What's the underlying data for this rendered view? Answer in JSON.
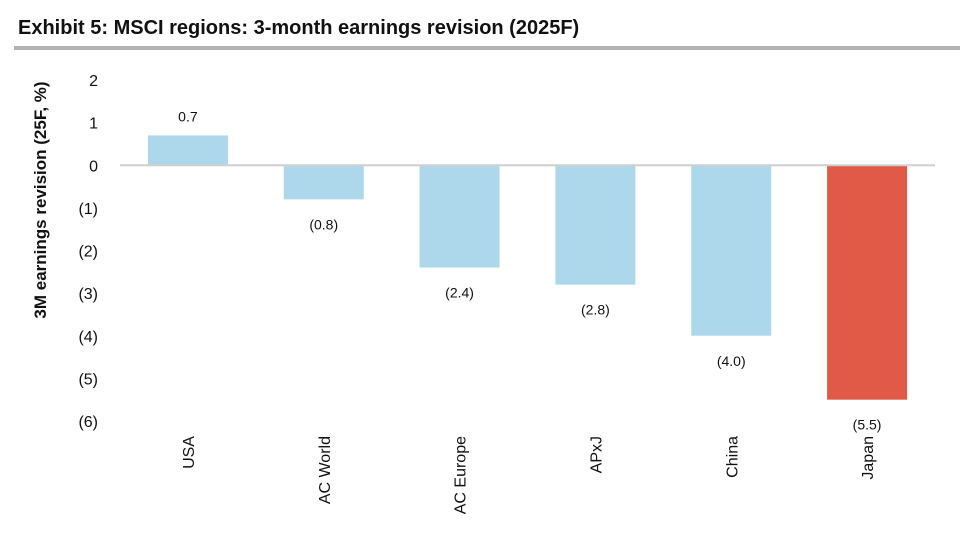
{
  "title": "Exhibit 5: MSCI regions: 3-month earnings revision (2025F)",
  "chart_data": {
    "type": "bar",
    "title": "Exhibit 5: MSCI regions: 3-month earnings revision (2025F)",
    "xlabel": "",
    "ylabel": "3M earnings revision (25F, %)",
    "ylim": [
      -6,
      2
    ],
    "yticks": [
      2,
      1,
      0,
      -1,
      -2,
      -3,
      -4,
      -5,
      -6
    ],
    "ytick_labels": [
      "2",
      "1",
      "0",
      "(1)",
      "(2)",
      "(3)",
      "(4)",
      "(5)",
      "(6)"
    ],
    "categories": [
      "USA",
      "AC World",
      "AC Europe",
      "APxJ",
      "China",
      "Japan"
    ],
    "values": [
      0.7,
      -0.8,
      -2.4,
      -2.8,
      -4.0,
      -5.5
    ],
    "data_labels": [
      "0.7",
      "(0.8)",
      "(2.4)",
      "(2.8)",
      "(4.0)",
      "(5.5)"
    ],
    "bar_colors": [
      "#add8eb",
      "#add8eb",
      "#add8eb",
      "#add8eb",
      "#add8eb",
      "#e05a47"
    ],
    "grid": false,
    "legend": "none"
  }
}
